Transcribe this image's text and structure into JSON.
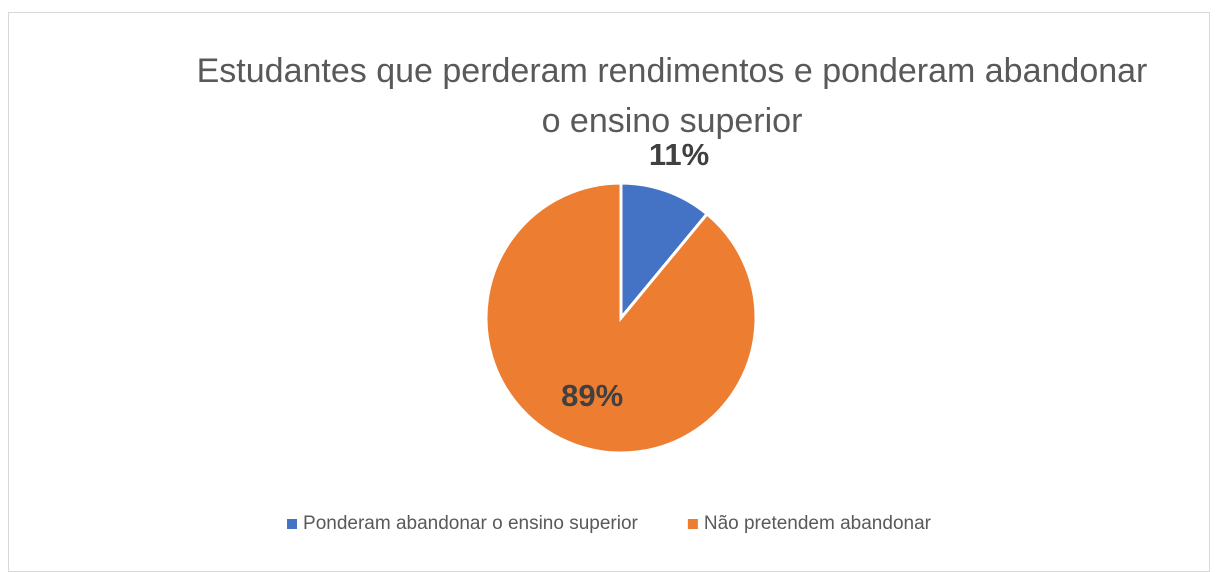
{
  "chart_data": {
    "type": "pie",
    "title": "Estudantes que perderam rendimentos e ponderam abandonar o ensino superior",
    "categories": [
      "Ponderam abandonar o ensino superior",
      "Não pretendem abandonar"
    ],
    "values": [
      11,
      89
    ],
    "value_labels": [
      "11%",
      "89%"
    ],
    "colors": [
      "#4472c4",
      "#ed7d31"
    ],
    "legend": "bottom"
  }
}
